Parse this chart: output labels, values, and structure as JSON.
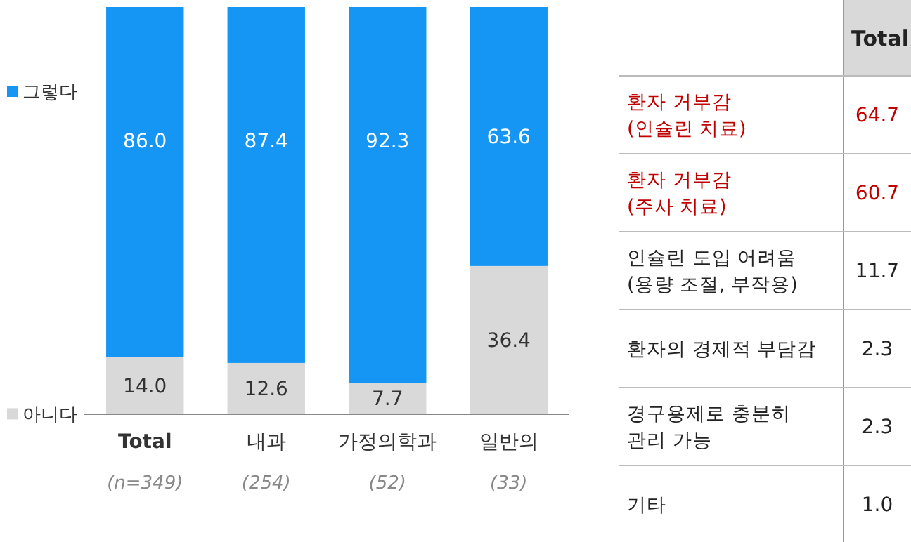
{
  "chart_data": [
    {
      "type": "bar",
      "stacked": true,
      "categories": [
        "Total",
        "내과",
        "가정의학과",
        "일반의"
      ],
      "ylim": [
        0,
        100
      ],
      "tick_labels": "x",
      "legend": "left",
      "series": [
        {
          "name": "아니다",
          "color": "#d9d9d9",
          "values": [
            14.0,
            12.6,
            7.7,
            36.4
          ],
          "value_labels": [
            "14.0",
            "12.6",
            "7.7",
            "36.4"
          ]
        },
        {
          "name": "그렇다",
          "color": "#1596f5",
          "values": [
            86.0,
            87.4,
            92.3,
            63.6
          ],
          "value_labels": [
            "86.0",
            "87.4",
            "92.3",
            "63.6"
          ]
        }
      ],
      "annotations": [
        "(n=349)",
        "(254)",
        "(52)",
        "(33)"
      ]
    },
    {
      "type": "other",
      "title": "Total",
      "categories": [
        "환자 거부감\n(인슐린 치료)",
        "환자 거부감\n(주사 치료)",
        "인슐린 도입 어려움\n(용량 조절, 부작용)",
        "환자의 경제적 부담감",
        "경구용제로 충분히\n관리 가능",
        "기타"
      ],
      "values": [
        64.7,
        60.7,
        11.7,
        2.3,
        2.3,
        1.0
      ],
      "value_labels": [
        "64.7",
        "60.7",
        "11.7",
        "2.3",
        "2.3",
        "1.0"
      ],
      "colors": [
        "#c00000",
        "#c00000",
        "#222222",
        "#222222",
        "#222222",
        "#222222"
      ]
    }
  ]
}
